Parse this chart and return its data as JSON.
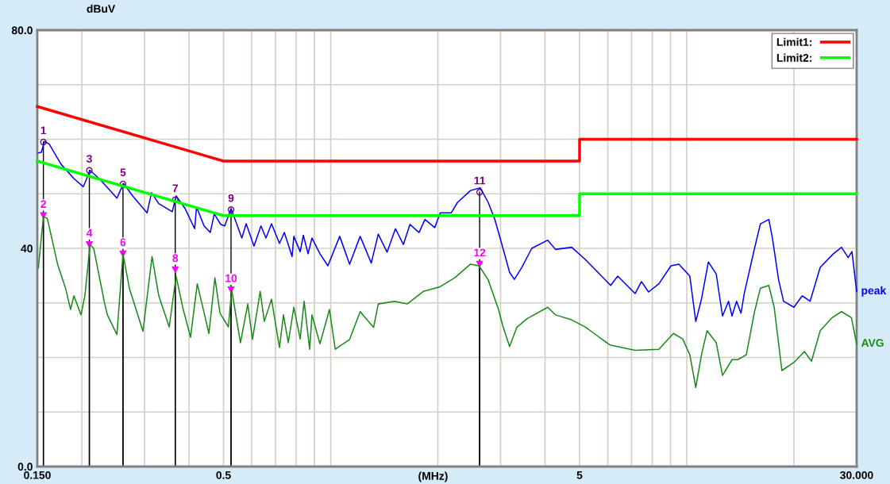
{
  "chart_data": {
    "type": "line",
    "xlabel": "(MHz)",
    "ylabel": "dBuV",
    "log": "x",
    "grid": true,
    "legend": "top right",
    "xlim": [
      0.15,
      30
    ],
    "ylim": [
      0,
      80
    ],
    "xticks": [
      {
        "value": 0.15,
        "label": "0.150"
      },
      {
        "value": 0.2,
        "label": null
      },
      {
        "value": 0.3,
        "label": null
      },
      {
        "value": 0.4,
        "label": null
      },
      {
        "value": 0.5,
        "label": "0.5"
      },
      {
        "value": 0.6,
        "label": null
      },
      {
        "value": 0.7,
        "label": null
      },
      {
        "value": 0.8,
        "label": null
      },
      {
        "value": 0.9,
        "label": null
      },
      {
        "value": 1,
        "label": null
      },
      {
        "value": 2,
        "label": null
      },
      {
        "value": 3,
        "label": null
      },
      {
        "value": 4,
        "label": null
      },
      {
        "value": 5,
        "label": "5"
      },
      {
        "value": 6,
        "label": null
      },
      {
        "value": 7,
        "label": null
      },
      {
        "value": 8,
        "label": null
      },
      {
        "value": 9,
        "label": null
      },
      {
        "value": 10,
        "label": null
      },
      {
        "value": 20,
        "label": null
      },
      {
        "value": 30,
        "label": "30.000"
      }
    ],
    "yticks": [
      {
        "value": 0,
        "label": "0.0"
      },
      {
        "value": 10,
        "label": null
      },
      {
        "value": 20,
        "label": null
      },
      {
        "value": 30,
        "label": null
      },
      {
        "value": 40,
        "label": "40"
      },
      {
        "value": 50,
        "label": null
      },
      {
        "value": 60,
        "label": null
      },
      {
        "value": 70,
        "label": null
      },
      {
        "value": 80,
        "label": "80.0"
      }
    ],
    "series": [
      {
        "name": "peak",
        "color": "#0000ff",
        "x": [
          0.151,
          0.154,
          0.157,
          0.162,
          0.175,
          0.19,
          0.202,
          0.211,
          0.226,
          0.251,
          0.262,
          0.278,
          0.305,
          0.314,
          0.329,
          0.359,
          0.368,
          0.39,
          0.415,
          0.42,
          0.441,
          0.459,
          0.471,
          0.491,
          0.504,
          0.525,
          0.563,
          0.579,
          0.609,
          0.637,
          0.658,
          0.682,
          0.718,
          0.741,
          0.779,
          0.788,
          0.821,
          0.838,
          0.864,
          0.886,
          0.933,
          0.982,
          1.06,
          1.13,
          1.21,
          1.3,
          1.36,
          1.44,
          1.52,
          1.6,
          1.67,
          1.77,
          1.84,
          1.96,
          2.03,
          2.18,
          2.27,
          2.47,
          2.63,
          2.77,
          2.89,
          3.02,
          3.18,
          3.28,
          3.44,
          3.67,
          4.07,
          4.28,
          4.75,
          5.18,
          5.63,
          6.11,
          6.4,
          7.16,
          7.46,
          7.81,
          8.35,
          9.03,
          9.5,
          10.2,
          10.6,
          11.0,
          11.5,
          12.1,
          12.6,
          13.1,
          13.4,
          13.8,
          14.2,
          14.5,
          15.5,
          16.1,
          17.0,
          17.4,
          18.1,
          18.7,
          20.0,
          21.1,
          22.2,
          23.7,
          25.8,
          27.2,
          28.4,
          29.1,
          30.0
        ],
        "values": [
          57.5,
          57.6,
          59.6,
          59.1,
          55.4,
          52.8,
          51.3,
          54.3,
          52.5,
          49.2,
          51.9,
          49.6,
          46.5,
          50.2,
          48.2,
          46.7,
          49.6,
          47.3,
          43.6,
          47.6,
          44.1,
          42.9,
          46.3,
          44.4,
          44.1,
          47.3,
          41.9,
          44.5,
          40.4,
          44.1,
          41.9,
          44.5,
          40.9,
          42.9,
          38.5,
          42.2,
          39.4,
          42.4,
          39.0,
          41.9,
          39.0,
          36.8,
          42.2,
          37.1,
          42.2,
          37.3,
          42.6,
          39.3,
          43.6,
          40.7,
          44.4,
          42.9,
          45.3,
          43.8,
          46.5,
          46.5,
          48.4,
          50.6,
          51.1,
          48.4,
          45.3,
          40.9,
          35.6,
          34.3,
          36.5,
          40.0,
          41.5,
          39.8,
          40.2,
          38.0,
          35.6,
          33.2,
          34.9,
          31.7,
          33.9,
          32.0,
          33.5,
          36.8,
          37.1,
          34.9,
          26.6,
          30.7,
          37.5,
          35.3,
          27.6,
          30.3,
          27.6,
          30.3,
          28.1,
          31.7,
          40.0,
          44.5,
          45.3,
          41.9,
          34.3,
          30.3,
          29.2,
          31.3,
          30.3,
          36.5,
          39.0,
          40.2,
          38.3,
          39.4,
          32.1
        ]
      },
      {
        "name": "AVG",
        "color": "#1a8a1a",
        "x": [
          0.151,
          0.156,
          0.16,
          0.171,
          0.18,
          0.186,
          0.19,
          0.199,
          0.204,
          0.211,
          0.216,
          0.232,
          0.236,
          0.251,
          0.261,
          0.272,
          0.297,
          0.315,
          0.329,
          0.352,
          0.368,
          0.384,
          0.404,
          0.422,
          0.455,
          0.473,
          0.489,
          0.516,
          0.527,
          0.558,
          0.585,
          0.603,
          0.634,
          0.651,
          0.682,
          0.718,
          0.737,
          0.76,
          0.788,
          0.821,
          0.842,
          0.873,
          0.886,
          0.933,
          0.992,
          1.03,
          1.13,
          1.21,
          1.32,
          1.36,
          1.51,
          1.64,
          1.82,
          2.02,
          2.23,
          2.47,
          2.61,
          2.77,
          2.96,
          3.04,
          3.18,
          3.33,
          3.56,
          4.07,
          4.28,
          4.75,
          5.21,
          5.49,
          6.08,
          7.16,
          8.35,
          9.17,
          9.74,
          10.2,
          10.6,
          11.0,
          11.4,
          12.1,
          12.6,
          13.4,
          13.9,
          14.7,
          15.5,
          16.1,
          17.0,
          17.6,
          18.5,
          20.0,
          21.4,
          22.4,
          23.7,
          25.6,
          27.2,
          29.0,
          30.0
        ],
        "values": [
          36.4,
          45.8,
          45.5,
          37.1,
          32.7,
          28.8,
          31.3,
          27.8,
          31.3,
          40.7,
          40.0,
          29.8,
          27.8,
          24.2,
          39.0,
          32.7,
          24.8,
          38.5,
          31.3,
          25.6,
          34.9,
          29.2,
          23.7,
          33.5,
          24.4,
          34.6,
          28.1,
          25.6,
          32.4,
          22.7,
          29.8,
          23.3,
          32.1,
          26.6,
          30.7,
          21.8,
          27.8,
          22.7,
          29.2,
          23.4,
          30.3,
          21.5,
          27.8,
          22.5,
          28.8,
          21.5,
          23.3,
          28.4,
          25.5,
          29.8,
          30.3,
          29.8,
          32.1,
          32.9,
          34.6,
          37.1,
          36.8,
          34.2,
          28.8,
          25.9,
          22.0,
          25.5,
          27.1,
          29.2,
          27.8,
          26.9,
          25.5,
          24.4,
          22.3,
          21.3,
          21.5,
          24.4,
          23.4,
          20.5,
          14.5,
          20.5,
          24.9,
          22.7,
          16.7,
          19.6,
          19.6,
          20.5,
          28.4,
          32.7,
          33.2,
          29.2,
          17.6,
          19.1,
          21.1,
          19.3,
          24.9,
          27.3,
          28.4,
          27.3,
          22.5
        ]
      },
      {
        "name": "Limit1:",
        "color": "#ff0000",
        "x": [
          0.15,
          0.5,
          5,
          5,
          30
        ],
        "values": [
          66,
          56,
          56,
          60,
          60
        ]
      },
      {
        "name": "Limit2:",
        "color": "#00ff00",
        "x": [
          0.15,
          0.5,
          5,
          5,
          30
        ],
        "values": [
          56,
          46,
          46,
          50,
          50
        ]
      }
    ],
    "annotations": [
      {
        "text": "1",
        "x": 0.156,
        "y": 59.5
      },
      {
        "text": "2",
        "x": 0.156,
        "y": 46.0
      },
      {
        "text": "3",
        "x": 0.21,
        "y": 54.3
      },
      {
        "text": "4",
        "x": 0.21,
        "y": 40.7
      },
      {
        "text": "5",
        "x": 0.261,
        "y": 51.8
      },
      {
        "text": "6",
        "x": 0.261,
        "y": 39.0
      },
      {
        "text": "7",
        "x": 0.366,
        "y": 48.9
      },
      {
        "text": "8",
        "x": 0.366,
        "y": 36.1
      },
      {
        "text": "9",
        "x": 0.525,
        "y": 47.1
      },
      {
        "text": "10",
        "x": 0.525,
        "y": 32.4
      },
      {
        "text": "11",
        "x": 2.62,
        "y": 50.3
      },
      {
        "text": "12",
        "x": 2.62,
        "y": 37.1
      }
    ]
  }
}
